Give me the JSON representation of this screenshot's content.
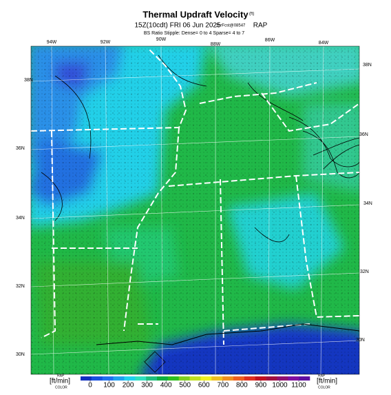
{
  "header": {
    "title": "Thermal Updraft Velocity",
    "title_units": "(ft)",
    "valid_time": "15Z(10cdt) FRI 06 Jun 2025",
    "forecast": "1hrFcst@08547",
    "model": "RAP",
    "stipple_note": "BS Ratio Stipple: Dense= 0 to 4 Sparse= 4 to 7"
  },
  "map": {
    "lon_labels": [
      "94W",
      "92W",
      "90W",
      "88W",
      "86W",
      "84W"
    ],
    "lat_labels_right": [
      "38N",
      "36N",
      "34N",
      "32N",
      "30N"
    ],
    "lat_labels_left": [
      "38N",
      "36N",
      "34N",
      "32N",
      "30N"
    ]
  },
  "colorbar": {
    "units_left": "[ft/min]",
    "units_right": "[ft/min]",
    "left_tag_top": "RAP",
    "left_tag_bottom": "COLOR",
    "right_tag_top": "RAP",
    "right_tag_bottom": "COLOR",
    "ticks": [
      0,
      100,
      200,
      300,
      400,
      500,
      600,
      700,
      800,
      900,
      1000,
      1100
    ],
    "colors": [
      "#1030c0",
      "#1850e0",
      "#2070f0",
      "#20a0f0",
      "#20d0f0",
      "#30e0c0",
      "#20c080",
      "#10b040",
      "#30c020",
      "#80d020",
      "#c0e020",
      "#f0f020",
      "#f0c020",
      "#f09020",
      "#f06020",
      "#e03020",
      "#c01020",
      "#a01040",
      "#901070",
      "#8010a0",
      "#6010a0"
    ]
  }
}
